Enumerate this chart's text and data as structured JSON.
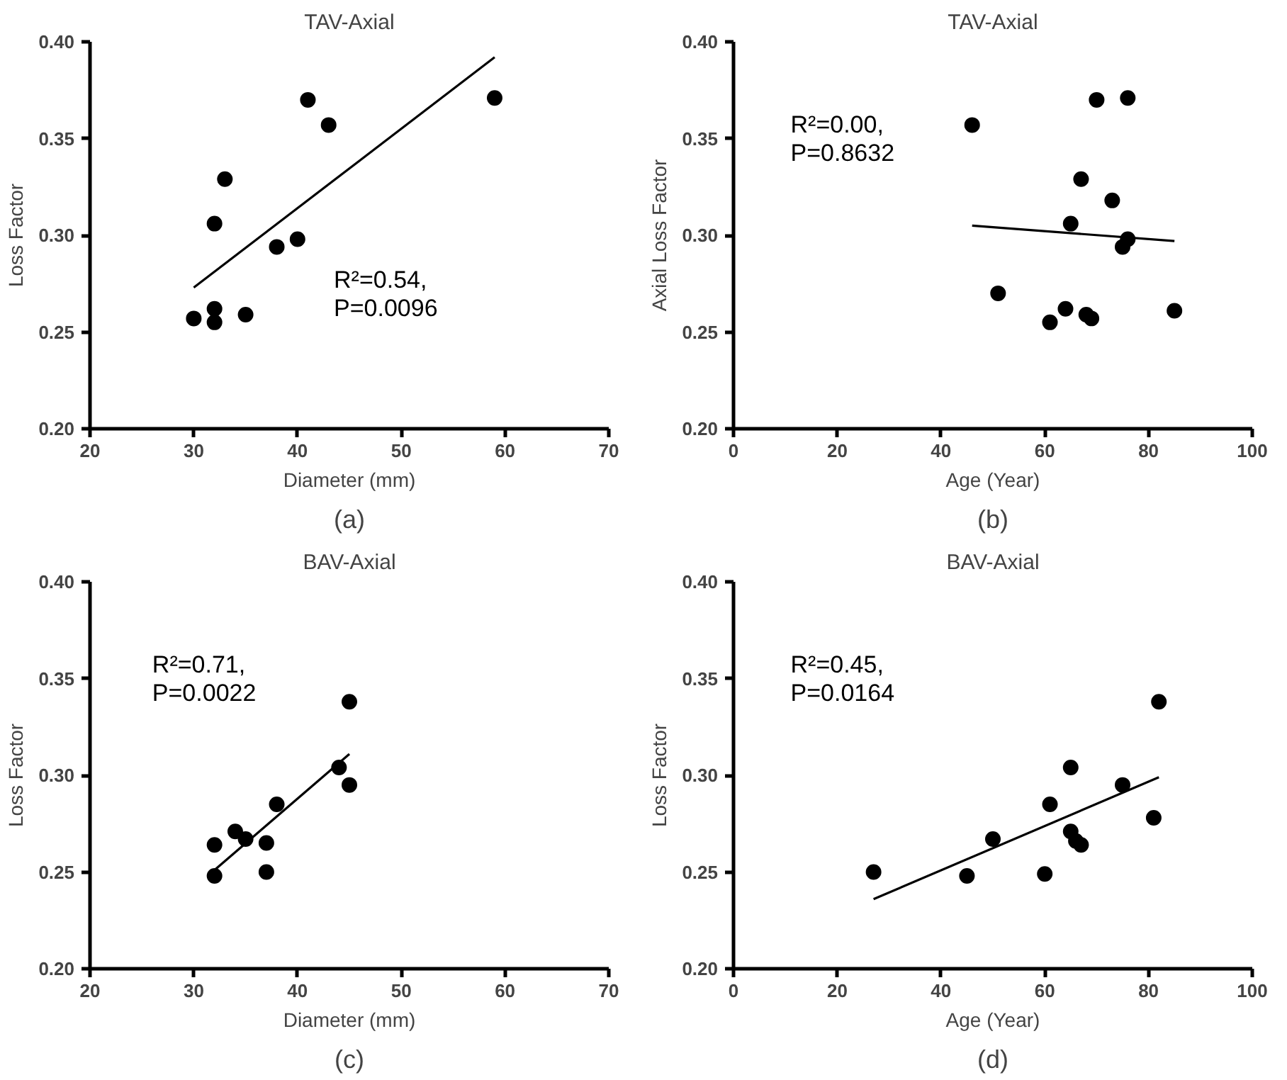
{
  "chart_data": [
    {
      "type": "scatter",
      "title": "TAV-Axial",
      "xlabel": "Diameter (mm)",
      "ylabel": "Loss Factor",
      "xlim": [
        20,
        70
      ],
      "ylim": [
        0.2,
        0.4
      ],
      "xticks": [
        20,
        30,
        40,
        50,
        60,
        70
      ],
      "yticks": [
        {
          "value": 0.2,
          "label": "0.20"
        },
        {
          "value": 0.25,
          "label": "0.25"
        },
        {
          "value": 0.3,
          "label": "0.30"
        },
        {
          "value": 0.35,
          "label": "0.35"
        },
        {
          "value": 0.4,
          "label": "0.40"
        }
      ],
      "grid": false,
      "annotations": [
        "R²=0.54,\nP=0.0096",
        "(a)"
      ],
      "series": [
        {
          "marker": "circle",
          "color": "#000000",
          "x": [
            30,
            32,
            32,
            32,
            33,
            35,
            38,
            40,
            41,
            43,
            59
          ],
          "values": [
            0.257,
            0.262,
            0.255,
            0.306,
            0.329,
            0.259,
            0.294,
            0.298,
            0.37,
            0.357,
            0.371
          ]
        },
        {
          "type": "line",
          "marker": "none",
          "color": "#000000",
          "x": [
            30,
            59
          ],
          "values": [
            0.273,
            0.392
          ]
        }
      ]
    },
    {
      "type": "scatter",
      "title": "TAV-Axial",
      "xlabel": "Age (Year)",
      "ylabel": "Axial Loss Factor",
      "xlim": [
        0,
        100
      ],
      "ylim": [
        0.2,
        0.4
      ],
      "xticks": [
        0,
        20,
        40,
        60,
        80,
        100
      ],
      "yticks": [
        {
          "value": 0.2,
          "label": "0.20"
        },
        {
          "value": 0.25,
          "label": "0.25"
        },
        {
          "value": 0.3,
          "label": "0.30"
        },
        {
          "value": 0.35,
          "label": "0.35"
        },
        {
          "value": 0.4,
          "label": "0.40"
        }
      ],
      "grid": false,
      "annotations": [
        "R²=0.00,\nP=0.8632",
        "(b)"
      ],
      "series": [
        {
          "marker": "circle",
          "color": "#000000",
          "x": [
            46,
            51,
            61,
            64,
            65,
            67,
            68,
            69,
            70,
            73,
            75,
            76,
            76,
            85
          ],
          "values": [
            0.357,
            0.27,
            0.255,
            0.262,
            0.306,
            0.329,
            0.259,
            0.257,
            0.37,
            0.318,
            0.294,
            0.298,
            0.371,
            0.261
          ]
        },
        {
          "type": "line",
          "marker": "none",
          "color": "#000000",
          "x": [
            46,
            85
          ],
          "values": [
            0.305,
            0.297
          ]
        }
      ]
    },
    {
      "type": "scatter",
      "title": "BAV-Axial",
      "xlabel": "Diameter (mm)",
      "ylabel": "Loss Factor",
      "xlim": [
        20,
        70
      ],
      "ylim": [
        0.2,
        0.4
      ],
      "xticks": [
        20,
        30,
        40,
        50,
        60,
        70
      ],
      "yticks": [
        {
          "value": 0.2,
          "label": "0.20"
        },
        {
          "value": 0.25,
          "label": "0.25"
        },
        {
          "value": 0.3,
          "label": "0.30"
        },
        {
          "value": 0.35,
          "label": "0.35"
        },
        {
          "value": 0.4,
          "label": "0.40"
        }
      ],
      "grid": false,
      "annotations": [
        "R²=0.71,\nP=0.0022",
        "(c)"
      ],
      "series": [
        {
          "marker": "circle",
          "color": "#000000",
          "x": [
            32,
            32,
            34,
            35,
            37,
            37,
            38,
            44,
            45,
            45
          ],
          "values": [
            0.264,
            0.248,
            0.271,
            0.267,
            0.265,
            0.25,
            0.285,
            0.304,
            0.338,
            0.295
          ]
        },
        {
          "type": "line",
          "marker": "none",
          "color": "#000000",
          "x": [
            32,
            45
          ],
          "values": [
            0.251,
            0.311
          ]
        }
      ]
    },
    {
      "type": "scatter",
      "title": "BAV-Axial",
      "xlabel": "Age (Year)",
      "ylabel": "Loss Factor",
      "xlim": [
        0,
        100
      ],
      "ylim": [
        0.2,
        0.4
      ],
      "xticks": [
        0,
        20,
        40,
        60,
        80,
        100
      ],
      "yticks": [
        {
          "value": 0.2,
          "label": "0.20"
        },
        {
          "value": 0.25,
          "label": "0.25"
        },
        {
          "value": 0.3,
          "label": "0.30"
        },
        {
          "value": 0.35,
          "label": "0.35"
        },
        {
          "value": 0.4,
          "label": "0.40"
        }
      ],
      "grid": false,
      "annotations": [
        "R²=0.45,\nP=0.0164",
        "(d)"
      ],
      "series": [
        {
          "marker": "circle",
          "color": "#000000",
          "x": [
            27,
            45,
            50,
            60,
            61,
            65,
            65,
            66,
            67,
            75,
            81,
            82
          ],
          "values": [
            0.25,
            0.248,
            0.267,
            0.249,
            0.285,
            0.304,
            0.271,
            0.266,
            0.264,
            0.295,
            0.278,
            0.338
          ]
        },
        {
          "type": "line",
          "marker": "none",
          "color": "#000000",
          "x": [
            27,
            82
          ],
          "values": [
            0.236,
            0.299
          ]
        }
      ]
    }
  ]
}
